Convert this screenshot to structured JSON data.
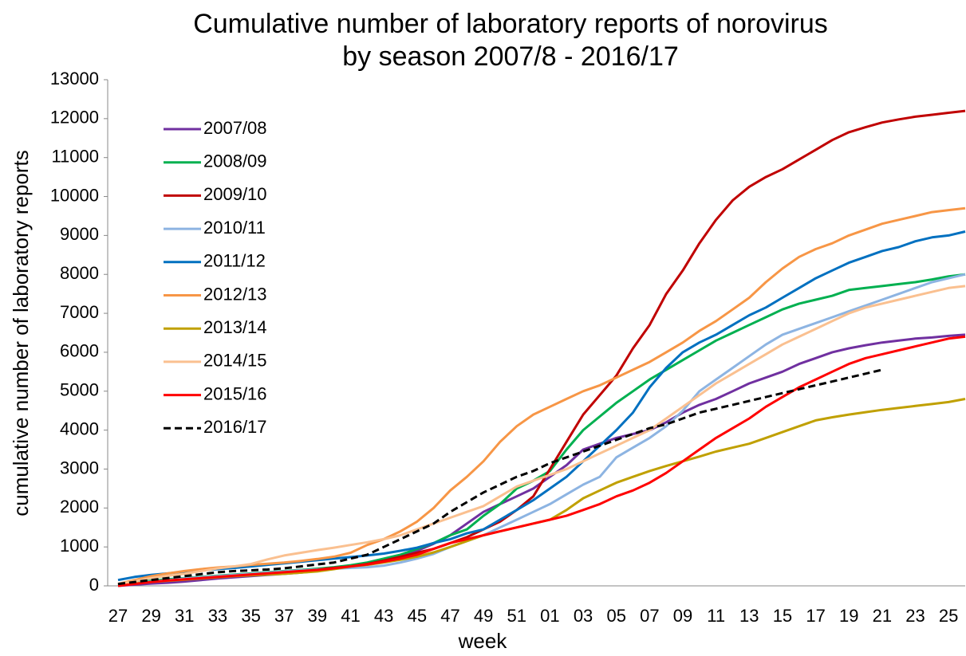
{
  "chart_data": {
    "type": "line",
    "title": [
      "Cumulative number of laboratory reports of norovirus",
      "by season 2007/8 - 2016/17"
    ],
    "x_label": "week",
    "y_label": "cumulative number of laboratory reports",
    "categories": [
      "27",
      null,
      "29",
      null,
      "31",
      null,
      "33",
      null,
      "35",
      null,
      "37",
      null,
      "39",
      null,
      "41",
      null,
      "43",
      null,
      "45",
      null,
      "47",
      null,
      "49",
      null,
      "51",
      null,
      "01",
      null,
      "03",
      null,
      "05",
      null,
      "07",
      null,
      "09",
      null,
      "11",
      null,
      "13",
      null,
      "15",
      null,
      "17",
      null,
      "19",
      null,
      "21",
      null,
      "23",
      null,
      "25",
      null
    ],
    "ylim": [
      0,
      13000
    ],
    "yticks": [
      0,
      1000,
      2000,
      3000,
      4000,
      5000,
      6000,
      7000,
      8000,
      9000,
      10000,
      11000,
      12000,
      13000
    ],
    "grid": false,
    "legend": "upper-left",
    "series": [
      {
        "name": "2007/08",
        "color": "#7030a0",
        "dashed": false,
        "values": [
          0,
          30,
          60,
          80,
          110,
          150,
          190,
          220,
          250,
          280,
          310,
          340,
          380,
          440,
          500,
          560,
          640,
          760,
          900,
          1080,
          1300,
          1600,
          1900,
          2100,
          2300,
          2500,
          2800,
          3100,
          3500,
          3650,
          3800,
          3900,
          4000,
          4200,
          4450,
          4650,
          4800,
          5000,
          5200,
          5350,
          5500,
          5700,
          5850,
          6000,
          6100,
          6180,
          6250,
          6300,
          6350,
          6380,
          6420,
          6450
        ]
      },
      {
        "name": "2008/09",
        "color": "#00b050",
        "dashed": false,
        "values": [
          50,
          90,
          130,
          170,
          200,
          230,
          260,
          290,
          320,
          350,
          380,
          410,
          440,
          480,
          530,
          600,
          700,
          800,
          950,
          1100,
          1300,
          1450,
          1800,
          2100,
          2500,
          2700,
          2950,
          3500,
          4000,
          4350,
          4700,
          5000,
          5300,
          5550,
          5800,
          6050,
          6300,
          6500,
          6700,
          6900,
          7100,
          7250,
          7350,
          7450,
          7600,
          7650,
          7700,
          7750,
          7800,
          7870,
          7950,
          8000
        ]
      },
      {
        "name": "2009/10",
        "color": "#c00000",
        "dashed": false,
        "values": [
          20,
          60,
          100,
          140,
          180,
          210,
          240,
          270,
          300,
          330,
          360,
          390,
          420,
          460,
          500,
          560,
          650,
          750,
          850,
          950,
          1100,
          1250,
          1450,
          1650,
          1950,
          2300,
          3000,
          3700,
          4400,
          4900,
          5400,
          6100,
          6700,
          7500,
          8100,
          8800,
          9400,
          9900,
          10250,
          10500,
          10700,
          10950,
          11200,
          11450,
          11650,
          11780,
          11900,
          11980,
          12050,
          12100,
          12150,
          12200
        ]
      },
      {
        "name": "2010/11",
        "color": "#8db4e2",
        "dashed": false,
        "values": [
          30,
          70,
          110,
          150,
          190,
          220,
          250,
          280,
          310,
          340,
          370,
          400,
          420,
          440,
          460,
          480,
          520,
          600,
          700,
          820,
          1000,
          1150,
          1300,
          1500,
          1700,
          1900,
          2100,
          2350,
          2600,
          2800,
          3300,
          3550,
          3800,
          4100,
          4500,
          5000,
          5300,
          5600,
          5900,
          6200,
          6450,
          6600,
          6750,
          6900,
          7050,
          7200,
          7350,
          7500,
          7650,
          7800,
          7900,
          8000
        ]
      },
      {
        "name": "2011/12",
        "color": "#0070c0",
        "dashed": false,
        "values": [
          150,
          230,
          280,
          320,
          360,
          400,
          430,
          460,
          500,
          540,
          580,
          620,
          660,
          700,
          740,
          780,
          830,
          900,
          980,
          1100,
          1200,
          1350,
          1450,
          1700,
          1950,
          2200,
          2500,
          2800,
          3200,
          3600,
          4000,
          4450,
          5100,
          5600,
          6000,
          6250,
          6450,
          6700,
          6950,
          7150,
          7400,
          7650,
          7900,
          8100,
          8300,
          8450,
          8600,
          8700,
          8850,
          8950,
          9000,
          9100
        ]
      },
      {
        "name": "2012/13",
        "color": "#f79646",
        "dashed": false,
        "values": [
          50,
          150,
          250,
          320,
          380,
          430,
          470,
          500,
          540,
          570,
          600,
          640,
          690,
          750,
          850,
          1050,
          1200,
          1400,
          1650,
          2000,
          2450,
          2800,
          3200,
          3700,
          4100,
          4400,
          4600,
          4800,
          5000,
          5150,
          5350,
          5550,
          5750,
          6000,
          6250,
          6550,
          6800,
          7100,
          7400,
          7800,
          8150,
          8450,
          8650,
          8800,
          9000,
          9150,
          9300,
          9400,
          9500,
          9600,
          9650,
          9700
        ]
      },
      {
        "name": "2013/14",
        "color": "#c0a000",
        "dashed": false,
        "values": [
          20,
          60,
          100,
          130,
          160,
          190,
          220,
          250,
          270,
          290,
          310,
          340,
          370,
          430,
          500,
          540,
          600,
          670,
          750,
          860,
          1000,
          1150,
          1300,
          1400,
          1500,
          1600,
          1700,
          1950,
          2250,
          2450,
          2650,
          2800,
          2950,
          3080,
          3200,
          3320,
          3450,
          3550,
          3650,
          3800,
          3950,
          4100,
          4250,
          4330,
          4400,
          4460,
          4520,
          4570,
          4620,
          4670,
          4720,
          4800
        ]
      },
      {
        "name": "2014/15",
        "color": "#fac090",
        "dashed": false,
        "values": [
          50,
          120,
          200,
          260,
          310,
          380,
          450,
          500,
          560,
          680,
          780,
          850,
          920,
          980,
          1050,
          1120,
          1200,
          1300,
          1450,
          1600,
          1750,
          1900,
          2050,
          2300,
          2550,
          2700,
          2850,
          3000,
          3200,
          3400,
          3600,
          3800,
          4000,
          4300,
          4600,
          4900,
          5200,
          5450,
          5700,
          5950,
          6200,
          6400,
          6600,
          6800,
          7000,
          7150,
          7250,
          7350,
          7450,
          7550,
          7650,
          7700
        ]
      },
      {
        "name": "2015/16",
        "color": "#ff0000",
        "dashed": false,
        "values": [
          0,
          50,
          100,
          140,
          170,
          200,
          230,
          260,
          290,
          320,
          350,
          380,
          410,
          450,
          500,
          550,
          620,
          700,
          800,
          950,
          1100,
          1200,
          1300,
          1400,
          1500,
          1600,
          1700,
          1800,
          1950,
          2100,
          2300,
          2450,
          2650,
          2900,
          3200,
          3500,
          3800,
          4050,
          4300,
          4600,
          4850,
          5100,
          5300,
          5500,
          5700,
          5850,
          5950,
          6050,
          6150,
          6250,
          6350,
          6400
        ]
      },
      {
        "name": "2016/17",
        "color": "#000000",
        "dashed": true,
        "values": [
          50,
          100,
          150,
          200,
          250,
          300,
          350,
          380,
          400,
          420,
          450,
          500,
          550,
          600,
          700,
          800,
          1000,
          1200,
          1400,
          1600,
          1900,
          2150,
          2400,
          2600,
          2800,
          2950,
          3150,
          3300,
          3450,
          3600,
          3750,
          3900,
          4050,
          4150,
          4300,
          4450,
          4550,
          4650,
          4750,
          4850,
          4950,
          5050,
          5150,
          5250,
          5350,
          5450,
          5550,
          null,
          null,
          null,
          null,
          null
        ]
      }
    ]
  }
}
